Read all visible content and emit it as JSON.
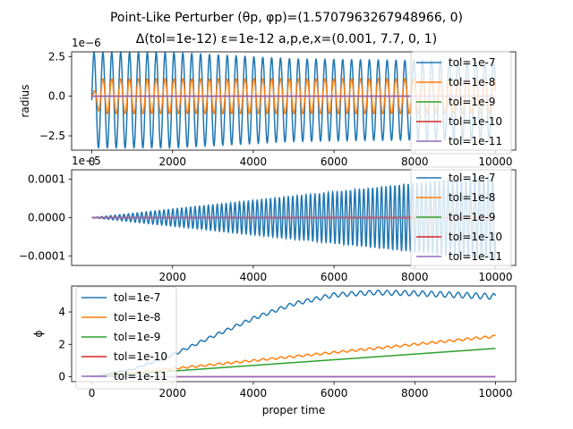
{
  "figure": {
    "title_line1": "Point-Like Perturber (θp, φp)=(1.5707963267948966, 0)",
    "title_line2": "Δ(tol=1e-12) ε=1e-12 a,p,e,x=(0.001, 7.7, 0, 1)"
  },
  "chart_data": [
    {
      "type": "line",
      "title": "",
      "xlabel": "",
      "ylabel": "radius",
      "offset_text": "1e−6",
      "xlim": [
        -500,
        10500
      ],
      "ylim": [
        -3.4e-06,
        2.8e-06
      ],
      "xticks": [
        0,
        2000,
        4000,
        6000,
        8000,
        10000
      ],
      "xtick_labels": [
        "0",
        "2000",
        "4000",
        "6000",
        "8000",
        "10000"
      ],
      "yticks": [
        -2.5e-06,
        0,
        2.5e-06
      ],
      "ytick_labels": [
        "−2.5",
        "0.0",
        "2.5"
      ],
      "legend_position": "lower-right",
      "series": [
        {
          "name": "tol=1e-7",
          "color": "#1f77b4",
          "model": "osc",
          "envelope_x": [
            0,
            200,
            2000,
            5000,
            8000,
            10000
          ],
          "envelope_y": [
            3e-06,
            3e-06,
            3e-06,
            2.6e-06,
            2.5e-06,
            2.5e-06
          ],
          "center": -2.5e-07,
          "period": 220
        },
        {
          "name": "tol=1e-8",
          "color": "#ff7f0e",
          "model": "osc",
          "envelope_x": [
            0,
            200,
            8000,
            10000
          ],
          "envelope_y": [
            0,
            1.1e-06,
            1.1e-06,
            1.1e-06
          ],
          "center": 0,
          "period": 220
        },
        {
          "name": "tol=1e-9",
          "color": "#2ca02c",
          "model": "flat",
          "value": 0
        },
        {
          "name": "tol=1e-10",
          "color": "#d62728",
          "model": "flat",
          "value": 0
        },
        {
          "name": "tol=1e-11",
          "color": "#9467bd",
          "model": "flat",
          "value": 0
        }
      ]
    },
    {
      "type": "line",
      "title": "",
      "xlabel": "",
      "ylabel": "",
      "offset_text": "1e−5",
      "xlim": [
        -500,
        10500
      ],
      "ylim": [
        -0.000125,
        0.000125
      ],
      "xticks": [
        2000,
        4000,
        6000,
        8000,
        10000
      ],
      "xtick_labels": [
        "2000",
        "4000",
        "6000",
        "8000",
        "10000"
      ],
      "yticks": [
        -0.0001,
        0,
        0.0001
      ],
      "ytick_labels": [
        "−0.0001",
        "0.0000",
        "0.0001"
      ],
      "legend_position": "lower-right",
      "series": [
        {
          "name": "tol=1e-7",
          "color": "#1f77b4",
          "model": "osc",
          "envelope_x": [
            0,
            10000
          ],
          "envelope_y": [
            0,
            0.000112
          ],
          "center": 0,
          "period": 110
        },
        {
          "name": "tol=1e-8",
          "color": "#ff7f0e",
          "model": "osc",
          "envelope_x": [
            0,
            10000
          ],
          "envelope_y": [
            0,
            3e-06
          ],
          "center": 0,
          "period": 110
        },
        {
          "name": "tol=1e-9",
          "color": "#2ca02c",
          "model": "flat",
          "value": 0
        },
        {
          "name": "tol=1e-10",
          "color": "#d62728",
          "model": "flat",
          "value": 0
        },
        {
          "name": "tol=1e-11",
          "color": "#9467bd",
          "model": "flat",
          "value": 0
        }
      ]
    },
    {
      "type": "line",
      "title": "",
      "xlabel": "proper time",
      "ylabel": "ϕ",
      "offset_text": "",
      "xlim": [
        -500,
        10500
      ],
      "ylim": [
        -0.3,
        5.6
      ],
      "xticks": [
        0,
        2000,
        4000,
        6000,
        8000,
        10000
      ],
      "xtick_labels": [
        "0",
        "2000",
        "4000",
        "6000",
        "8000",
        "10000"
      ],
      "yticks": [
        0,
        2,
        4
      ],
      "ytick_labels": [
        "0",
        "2",
        "4"
      ],
      "legend_position": "upper-left",
      "series": [
        {
          "name": "tol=1e-7",
          "color": "#1f77b4",
          "model": "trend",
          "x": [
            0,
            1000,
            2000,
            3000,
            4000,
            5000,
            6000,
            7000,
            8000,
            9000,
            10000
          ],
          "y": [
            0,
            0.45,
            1.35,
            2.5,
            3.6,
            4.5,
            5.05,
            5.2,
            5.15,
            5.05,
            4.95
          ],
          "amp_x": [
            0,
            2000,
            10000
          ],
          "amp_y": [
            0,
            0.08,
            0.18
          ],
          "period": 220
        },
        {
          "name": "tol=1e-8",
          "color": "#ff7f0e",
          "model": "trend",
          "x": [
            0,
            10000
          ],
          "y": [
            0,
            2.5
          ],
          "amp_x": [
            0,
            10000
          ],
          "amp_y": [
            0.05,
            0.07
          ],
          "period": 220
        },
        {
          "name": "tol=1e-9",
          "color": "#2ca02c",
          "model": "trend",
          "x": [
            0,
            10000
          ],
          "y": [
            0,
            1.75
          ],
          "amp_x": [
            0,
            10000
          ],
          "amp_y": [
            0,
            0
          ],
          "period": 220
        },
        {
          "name": "tol=1e-10",
          "color": "#d62728",
          "model": "flat",
          "value": 0
        },
        {
          "name": "tol=1e-11",
          "color": "#9467bd",
          "model": "flat",
          "value": 0
        }
      ]
    }
  ]
}
